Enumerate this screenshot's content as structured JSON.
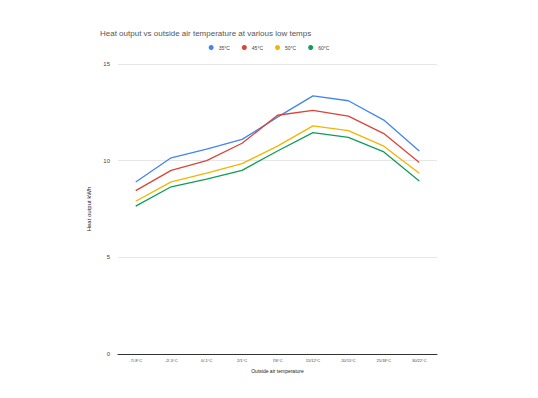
{
  "chart_data": {
    "type": "line",
    "title": "Heat output vs outside air temperature at various low temps",
    "x_label": "Outside air temperature",
    "y_label": "Heat output kWh",
    "categories": [
      "-7/-8°C",
      "-2/-3°C",
      "0/-1°C",
      "2/1°C",
      "7/6°C",
      "15/12°C",
      "20/15°C",
      "25/18°C",
      "30/22°C"
    ],
    "series": [
      {
        "name": "35°C",
        "color": "#4285f4",
        "values": [
          8.9,
          10.15,
          10.6,
          11.1,
          12.25,
          13.35,
          13.1,
          12.1,
          10.5
        ]
      },
      {
        "name": "45°C",
        "color": "#db4437",
        "values": [
          8.45,
          9.5,
          10.0,
          10.9,
          12.35,
          12.6,
          12.3,
          11.4,
          9.9
        ]
      },
      {
        "name": "50°C",
        "color": "#f4b400",
        "values": [
          7.9,
          8.9,
          9.35,
          9.85,
          10.75,
          11.8,
          11.55,
          10.75,
          9.35
        ]
      },
      {
        "name": "60°C",
        "color": "#0f9d58",
        "values": [
          7.65,
          8.65,
          9.05,
          9.5,
          10.5,
          11.45,
          11.2,
          10.45,
          8.95
        ]
      }
    ],
    "ylim": [
      0,
      15
    ],
    "yticks": [
      0,
      5,
      10,
      15
    ],
    "grid": true,
    "legend": "top"
  }
}
